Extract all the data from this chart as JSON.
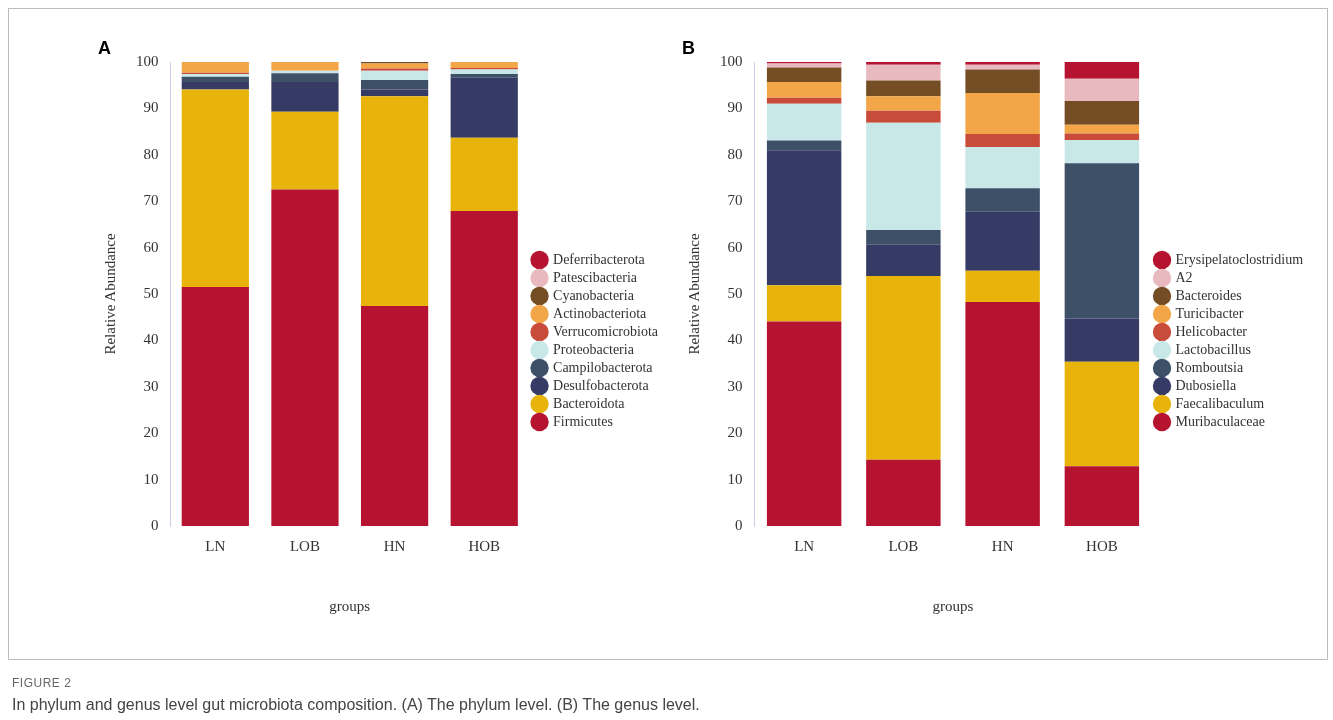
{
  "chart_data": [
    {
      "type": "bar",
      "stacked": true,
      "categories": [
        "LN",
        "LOB",
        "HN",
        "HOB"
      ],
      "xlabel": "groups",
      "ylabel": "Relative Abundance",
      "ylim": [
        0,
        100
      ],
      "yticks": [
        0,
        10,
        20,
        30,
        40,
        50,
        60,
        70,
        80,
        90,
        100
      ],
      "grid": false,
      "legend": "right",
      "annotations": [
        "A",
        "FIGURE 2",
        "In phylum and genus level gut microbiota composition. (A) The phylum level. (B) The genus level."
      ],
      "series": [
        {
          "name": "Firmicutes",
          "color": "#b5132f",
          "values": [
            51.5,
            72.5,
            47.4,
            67.9
          ]
        },
        {
          "name": "Bacteroidota",
          "color": "#e8b40c",
          "values": [
            42.6,
            16.8,
            45.2,
            15.8
          ]
        },
        {
          "name": "Desulfobacterota",
          "color": "#363b66",
          "values": [
            1.6,
            6.4,
            1.5,
            12.9
          ]
        },
        {
          "name": "Campilobacterota",
          "color": "#3d5068",
          "values": [
            1.1,
            1.9,
            2.0,
            0.8
          ]
        },
        {
          "name": "Proteobacteria",
          "color": "#c8e8e8",
          "values": [
            0.6,
            0.5,
            2.0,
            1.0
          ]
        },
        {
          "name": "Verrucomicrobiota",
          "color": "#c94b3a",
          "values": [
            0.3,
            0,
            0.5,
            0.3
          ]
        },
        {
          "name": "Actinobacteriota",
          "color": "#f2a648",
          "values": [
            2.3,
            1.9,
            1.1,
            1.3
          ]
        },
        {
          "name": "Cyanobacteria",
          "color": "#754d24",
          "values": [
            0,
            0,
            0.3,
            0
          ]
        },
        {
          "name": "Patescibacteria",
          "color": "#e8b9be",
          "values": [
            0,
            0,
            0,
            0
          ]
        },
        {
          "name": "Deferribacterota",
          "color": "#b5132f",
          "values": [
            0,
            0,
            0,
            0
          ]
        }
      ]
    },
    {
      "type": "bar",
      "stacked": true,
      "categories": [
        "LN",
        "LOB",
        "HN",
        "HOB"
      ],
      "xlabel": "groups",
      "ylabel": "Relative Abundance",
      "ylim": [
        0,
        100
      ],
      "yticks": [
        0,
        10,
        20,
        30,
        40,
        50,
        60,
        70,
        80,
        90,
        100
      ],
      "grid": false,
      "legend": "right",
      "annotations": [
        "B"
      ],
      "series": [
        {
          "name": "Muribaculaceae",
          "color": "#b5132f",
          "values": [
            44.1,
            14.3,
            48.3,
            12.9
          ]
        },
        {
          "name": "Faecalibaculum",
          "color": "#e8b40c",
          "values": [
            7.8,
            39.6,
            6.7,
            22.5
          ]
        },
        {
          "name": "Dubosiella",
          "color": "#363b66",
          "values": [
            29.1,
            6.7,
            12.7,
            9.3
          ]
        },
        {
          "name": "Romboutsia",
          "color": "#3d5068",
          "values": [
            2.1,
            3.2,
            5.1,
            33.5
          ]
        },
        {
          "name": "Lactobacillus",
          "color": "#c8e8e8",
          "values": [
            7.9,
            23.1,
            8.9,
            5.0
          ]
        },
        {
          "name": "Helicobacter",
          "color": "#c94b3a",
          "values": [
            1.3,
            2.6,
            2.8,
            1.4
          ]
        },
        {
          "name": "Turicibacter",
          "color": "#f2a648",
          "values": [
            3.4,
            3.1,
            8.8,
            1.9
          ]
        },
        {
          "name": "Bacteroides",
          "color": "#754d24",
          "values": [
            3.1,
            3.4,
            5.1,
            5.1
          ]
        },
        {
          "name": "A2",
          "color": "#e8b9be",
          "values": [
            0.9,
            3.4,
            1.0,
            4.8
          ]
        },
        {
          "name": "Erysipelatoclostridium",
          "color": "#b5132f",
          "values": [
            0.3,
            0.6,
            0.6,
            3.6
          ]
        }
      ]
    }
  ]
}
